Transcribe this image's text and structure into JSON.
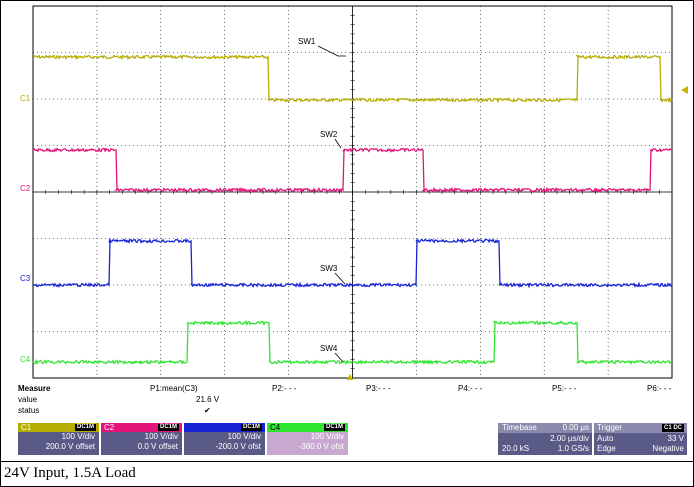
{
  "scope": {
    "colors": {
      "grid": "#000000",
      "c1": "#b5ad00",
      "c2": "#e3137a",
      "c3": "#1624d3",
      "c4": "#2ee52e",
      "trigger_marker": "#c8b400",
      "panel": "#5a5a86"
    },
    "channels": [
      {
        "id": "c1",
        "marker": "C1",
        "label": "SW1"
      },
      {
        "id": "c2",
        "marker": "C2",
        "label": "SW2"
      },
      {
        "id": "c3",
        "marker": "C3",
        "label": "SW3"
      },
      {
        "id": "c4",
        "marker": "C4",
        "label": "SW4"
      }
    ]
  },
  "measure": {
    "title": "Measure",
    "row_value": "value",
    "row_status": "status",
    "p1_name": "P1:mean(C3)",
    "p1_value": "21.6 V",
    "p1_status": "✔",
    "p2": "P2:- - -",
    "p3": "P3:- - -",
    "p4": "P4:- - -",
    "p5": "P5:- - -",
    "p6": "P6:- - -"
  },
  "channel_boxes": [
    {
      "name": "C1",
      "coupling": "DC1M",
      "vdiv": "100 V/div",
      "offset": "200.0 V offset"
    },
    {
      "name": "C2",
      "coupling": "DC1M",
      "vdiv": "100 V/div",
      "offset": "0.0 V offset"
    },
    {
      "name": "",
      "coupling": "DC1M",
      "vdiv": "100 V/div",
      "offset": "-200.0 V ofst"
    },
    {
      "name": "C4",
      "coupling": "DC1M",
      "vdiv": "100 V/div",
      "offset": "-380.0 V ofst"
    }
  ],
  "timebase": {
    "label": "Timebase",
    "delay": "0.00 µs",
    "tdiv": "2.00 µs/div",
    "samples": "20.0 kS",
    "rate": "1.0 GS/s"
  },
  "trigger": {
    "label": "Trigger",
    "source": "C1 DC",
    "mode": "Auto",
    "level": "33 V",
    "type": "Edge",
    "slope": "Negative"
  },
  "caption": "24V Input, 1.5A Load"
}
